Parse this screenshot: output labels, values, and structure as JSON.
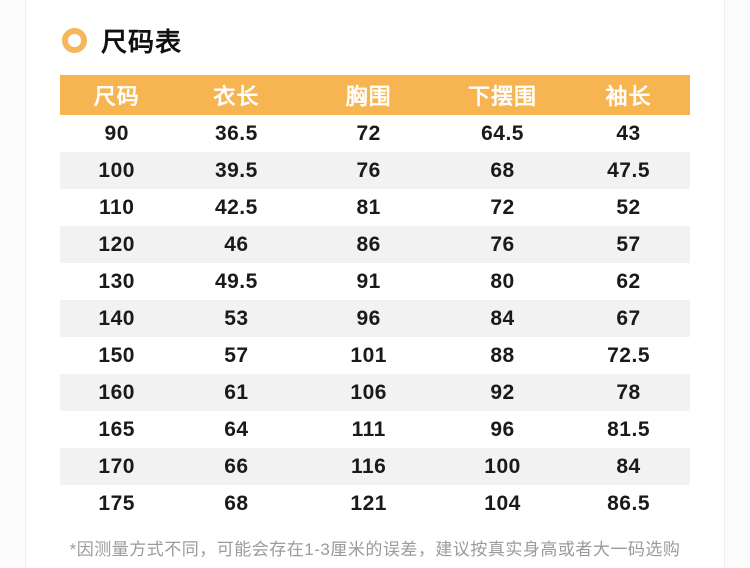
{
  "title": {
    "text": "尺码表"
  },
  "colors": {
    "accent_orange": "#F7B552",
    "ring_orange": "#F5B75A",
    "row_alt_gray": "#F2F2F2",
    "header_text": "#FFFFFF",
    "body_text": "#1A1A1A",
    "note_gray": "#9B9B9B"
  },
  "table": {
    "headers": [
      "尺码",
      "衣长",
      "胸围",
      "下摆围",
      "袖长"
    ],
    "rows": [
      [
        "90",
        "36.5",
        "72",
        "64.5",
        "43"
      ],
      [
        "100",
        "39.5",
        "76",
        "68",
        "47.5"
      ],
      [
        "110",
        "42.5",
        "81",
        "72",
        "52"
      ],
      [
        "120",
        "46",
        "86",
        "76",
        "57"
      ],
      [
        "130",
        "49.5",
        "91",
        "80",
        "62"
      ],
      [
        "140",
        "53",
        "96",
        "84",
        "67"
      ],
      [
        "150",
        "57",
        "101",
        "88",
        "72.5"
      ],
      [
        "160",
        "61",
        "106",
        "92",
        "78"
      ],
      [
        "165",
        "64",
        "111",
        "96",
        "81.5"
      ],
      [
        "170",
        "66",
        "116",
        "100",
        "84"
      ],
      [
        "175",
        "68",
        "121",
        "104",
        "86.5"
      ]
    ]
  },
  "note": "*因测量方式不同，可能会存在1-3厘米的误差，建议按真实身高或者大一码选购"
}
